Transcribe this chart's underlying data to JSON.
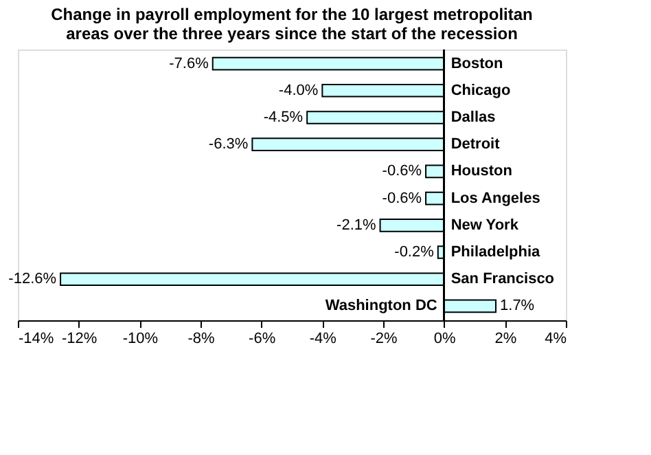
{
  "chart_data": {
    "type": "bar",
    "orientation": "horizontal",
    "title": "Change in payroll employment for the 10 largest metropolitan areas over the three years since the start of the recession",
    "categories": [
      "Boston",
      "Chicago",
      "Dallas",
      "Detroit",
      "Houston",
      "Los Angeles",
      "New York",
      "Philadelphia",
      "San Francisco",
      "Washington DC"
    ],
    "values": [
      -7.6,
      -4.0,
      -4.5,
      -6.3,
      -0.6,
      -0.6,
      -2.1,
      -0.2,
      -12.6,
      1.7
    ],
    "value_labels": [
      "-7.6%",
      "-4.0%",
      "-4.5%",
      "-6.3%",
      "-0.6%",
      "-0.6%",
      "-2.1%",
      "-0.2%",
      "-12.6%",
      "1.7%"
    ],
    "color": "#ccffff",
    "xlim": [
      -14,
      4
    ],
    "xticks": [
      {
        "value": -14,
        "label": "-14%"
      },
      {
        "value": -12,
        "label": "-12%"
      },
      {
        "value": -10,
        "label": "-10%"
      },
      {
        "value": -8,
        "label": "-8%"
      },
      {
        "value": -6,
        "label": "-6%"
      },
      {
        "value": -4,
        "label": "-4%"
      },
      {
        "value": -2,
        "label": "-2%"
      },
      {
        "value": 0,
        "label": "0%"
      },
      {
        "value": 2,
        "label": "2%"
      },
      {
        "value": 4,
        "label": "4%"
      }
    ],
    "grid": false
  }
}
